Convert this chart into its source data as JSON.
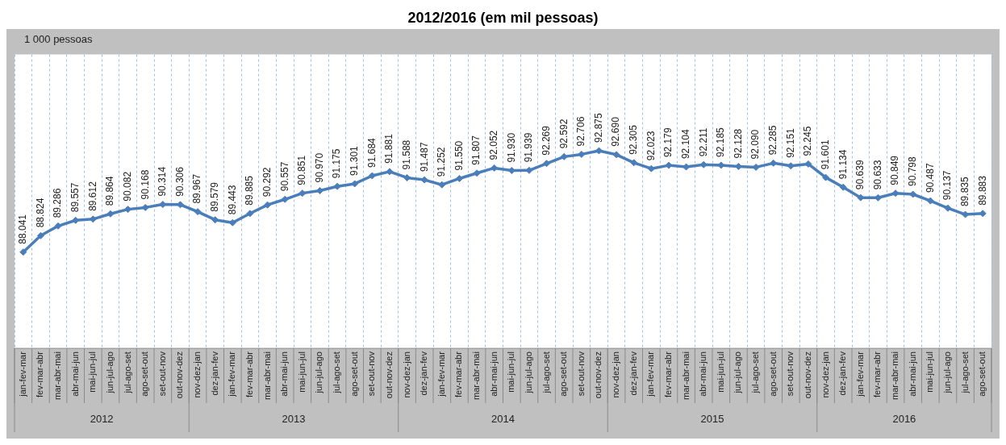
{
  "chart_data": {
    "type": "line",
    "title": "2012/2016 (em mil pessoas)",
    "categories": [
      "jan-fev-mar",
      "fev-mar-abr",
      "mar-abr-mai",
      "abr-mai-jun",
      "mai-jun-jul",
      "jun-jul-ago",
      "jul-ago-set",
      "ago-set-out",
      "set-out-nov",
      "out-nov-dez",
      "nov-dez-jan",
      "dez-jan-fev",
      "jan-fev-mar",
      "fev-mar-abr",
      "mar-abr-mai",
      "abr-mai-jun",
      "mai-jun-jul",
      "jun-jul-ago",
      "jul-ago-set",
      "ago-set-out",
      "set-out-nov",
      "out-nov-dez",
      "nov-dez-jan",
      "dez-jan-fev",
      "jan-fev-mar",
      "fev-mar-abr",
      "mar-abr-mai",
      "abr-mai-jun",
      "mai-jun-jul",
      "jun-jul-ago",
      "jul-ago-set",
      "ago-set-out",
      "set-out-nov",
      "out-nov-dez",
      "nov-dez-jan",
      "dez-jan-fev",
      "jan-fev-mar",
      "fev-mar-abr",
      "mar-abr-mai",
      "abr-mai-jun",
      "mai-jun-jul",
      "jun-jul-ago",
      "jul-ago-set",
      "ago-set-out",
      "set-out-nov",
      "out-nov-dez",
      "nov-dez-jan",
      "dez-jan-fev",
      "jan-fev-mar",
      "fev-mar-abr",
      "mar-abr-mai",
      "abr-mai-jun",
      "mai-jun-jul",
      "jun-jul-ago",
      "jul-ago-set",
      "ago-set-out"
    ],
    "series": [
      {
        "color": "#4a7ebb",
        "values": [
          88041,
          88824,
          89286,
          89557,
          89612,
          89864,
          90082,
          90168,
          90314,
          90306,
          89967,
          89579,
          89443,
          89885,
          90292,
          90557,
          90851,
          90970,
          91175,
          91301,
          91684,
          91881,
          91588,
          91487,
          91252,
          91550,
          91807,
          92052,
          91930,
          91939,
          92269,
          92592,
          92706,
          92875,
          92690,
          92305,
          92023,
          92179,
          92104,
          92211,
          92185,
          92128,
          92090,
          92285,
          92151,
          92245,
          91601,
          91134,
          90639,
          90633,
          90849,
          90798,
          90487,
          90137,
          89835,
          89883
        ],
        "value_labels": [
          "88.041",
          "88.824",
          "89.286",
          "89.557",
          "89.612",
          "89.864",
          "90.082",
          "90.168",
          "90.314",
          "90.306",
          "89.967",
          "89.579",
          "89.443",
          "89.885",
          "90.292",
          "90.557",
          "90.851",
          "90.970",
          "91.175",
          "91.301",
          "91.684",
          "91.881",
          "91.588",
          "91.487",
          "91.252",
          "91.550",
          "91.807",
          "92.052",
          "91.930",
          "91.939",
          "92.269",
          "92.592",
          "92.706",
          "92.875",
          "92.690",
          "92.305",
          "92.023",
          "92.179",
          "92.104",
          "92.211",
          "92.185",
          "92.128",
          "92.090",
          "92.285",
          "92.151",
          "92.245",
          "91.601",
          "91.134",
          "90.639",
          "90.633",
          "90.849",
          "90.798",
          "90.487",
          "90.137",
          "89.835",
          "89.883"
        ]
      }
    ],
    "annotations": [
      "1 000 pessoas",
      "2012",
      "2013",
      "2014",
      "2015",
      "2016"
    ],
    "grid": "x",
    "legend": false,
    "marker": "diamond",
    "line_style": "solid"
  }
}
